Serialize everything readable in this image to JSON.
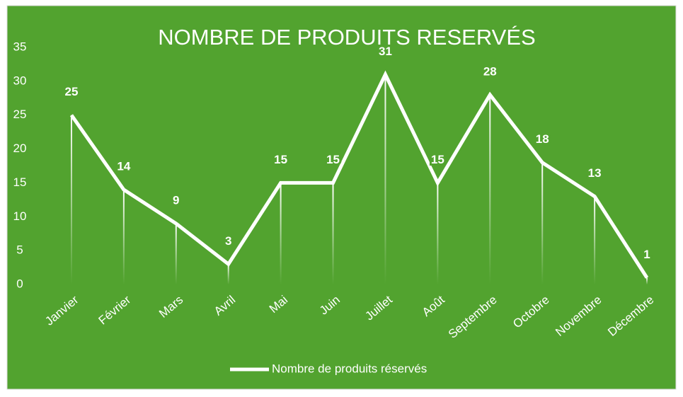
{
  "chart_data": {
    "type": "line",
    "title": "NOMBRE DE PRODUITS RESERVÉS",
    "categories": [
      "Janvier",
      "Février",
      "Mars",
      "Avril",
      "Mai",
      "Juin",
      "Juillet",
      "Août",
      "Septembre",
      "Octobre",
      "Novembre",
      "Décembre"
    ],
    "series": [
      {
        "name": "Nombre de produits réservés",
        "color": "#ffffff",
        "values": [
          25,
          14,
          9,
          3,
          15,
          15,
          31,
          15,
          28,
          18,
          13,
          1
        ]
      }
    ],
    "ylim": [
      0,
      35
    ],
    "yticks": [
      0,
      5,
      10,
      15,
      20,
      25,
      30,
      35
    ],
    "grid": false,
    "legend": "bottom"
  }
}
